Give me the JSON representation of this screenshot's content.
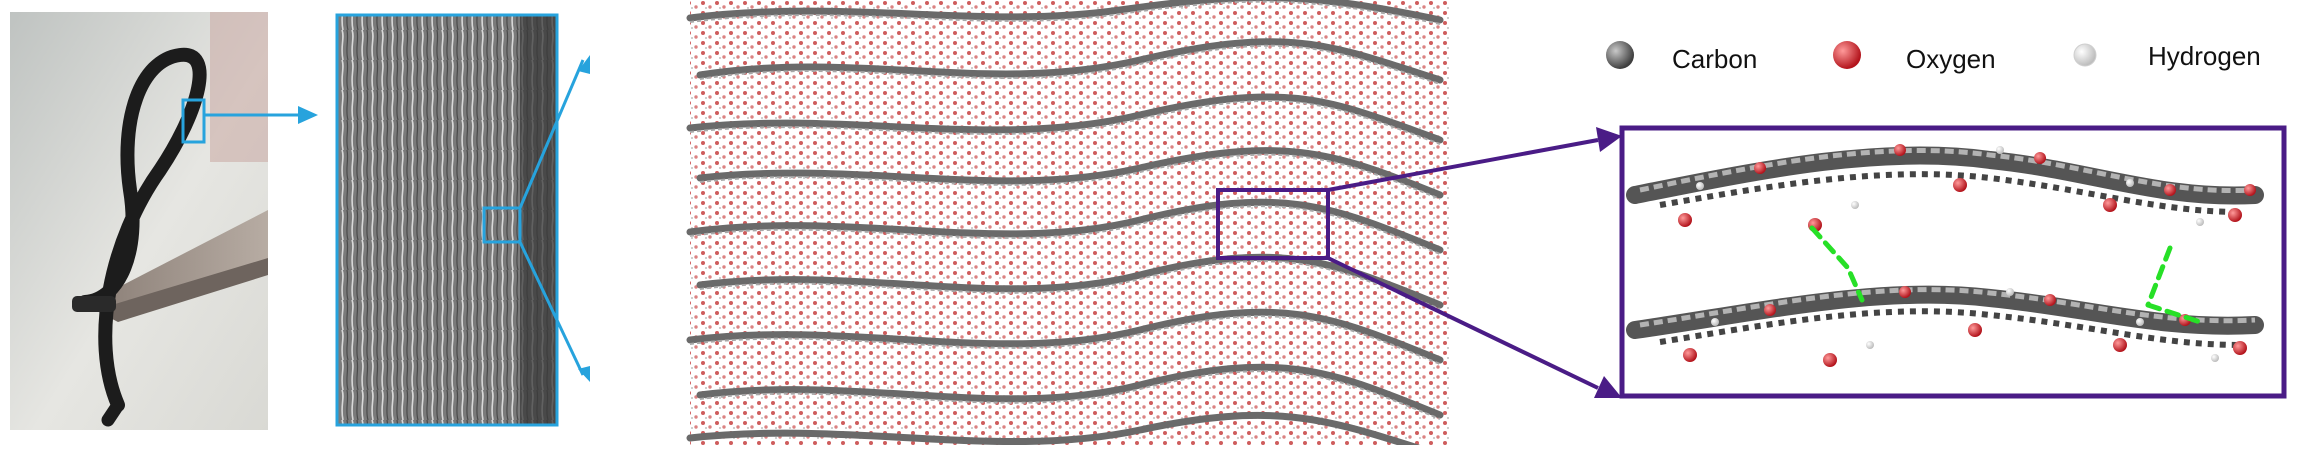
{
  "figure": {
    "panels": {
      "photo": "Photograph of a black film strip bent into a loop, held by tweezers",
      "sem": "SEM image of a layered cross-section",
      "simulation": "Molecular dynamics snapshot of stacked wavy layers",
      "zoom": "Zoomed view of two sheets with green dashed hydrogen bonds"
    },
    "legend": {
      "items": [
        {
          "label": "Carbon",
          "color": "#5f5f5f"
        },
        {
          "label": "Oxygen",
          "color": "#d8303a"
        },
        {
          "label": "Hydrogen",
          "color": "#f2f2f2"
        }
      ]
    },
    "colors": {
      "highlight_blue": "#27a3dd",
      "highlight_purple": "#4a1c86",
      "hbond_green": "#27e027"
    }
  }
}
